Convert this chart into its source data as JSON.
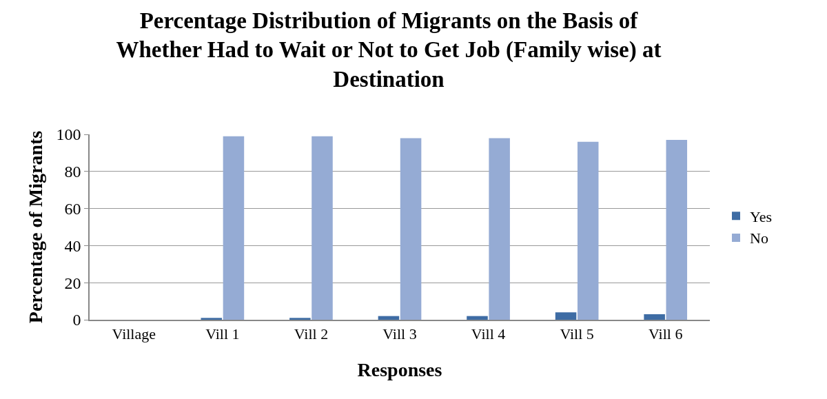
{
  "chart_data": {
    "type": "bar",
    "title": "Percentage Distribution of Migrants on the Basis of Whether Had to Wait or Not to Get Job (Family wise) at Destination",
    "xlabel": "Responses",
    "ylabel": "Percentage of Migrants",
    "categories": [
      "Village",
      "Vill 1",
      "Vill 2",
      "Vill 3",
      "Vill 4",
      "Vill 5",
      "Vill 6"
    ],
    "series": [
      {
        "name": "Yes",
        "color": "#3e6ca4",
        "values": [
          null,
          1,
          1,
          2,
          2,
          4,
          3
        ]
      },
      {
        "name": "No",
        "color": "#95abd4",
        "values": [
          null,
          99,
          99,
          98,
          98,
          96,
          97
        ]
      }
    ],
    "ylim": [
      0,
      100
    ],
    "yticks": [
      0,
      20,
      40,
      60,
      80,
      100
    ],
    "grid": "y",
    "legend": "right"
  }
}
